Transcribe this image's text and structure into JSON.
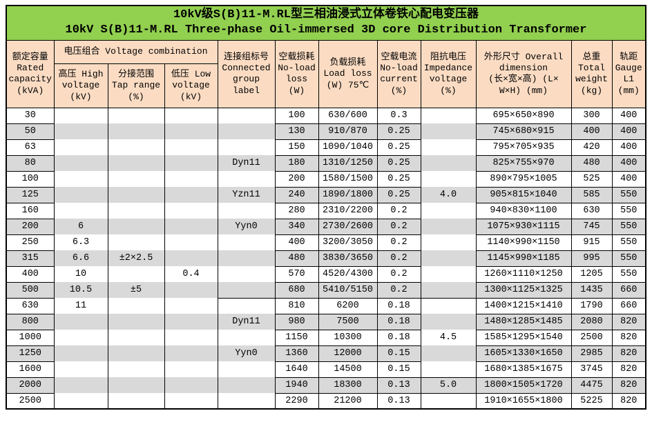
{
  "title": {
    "line1": "10kV级S(B)11-M.RL型三相油浸式立体卷铁心配电变压器",
    "line2": "10kV S(B)11-M.RL Three-phase Oil-immersed 3D core Distribution Transformer"
  },
  "colors": {
    "title_bg": "#92D050",
    "header_bg": "#FBDCC3",
    "stripe_bg": "#D9D9D9",
    "border": "#000000"
  },
  "header": {
    "capacity": "额定容量\nRated\ncapacity\n(kVA)",
    "voltage_combination": "电压组合 Voltage combination",
    "high_voltage": "高压 High\nvoltage\n(kV)",
    "tap_range": "分接范围\nTap range\n(%)",
    "low_voltage": "低压 Low\nvoltage\n(kV)",
    "connected_group": "连接组标号\nConnected\ngroup\nlabel",
    "no_load_loss": "空载损耗\nNo-load\nloss\n(W)",
    "load_loss": "负载损耗\nLoad loss\n(W) 75℃",
    "no_load_current": "空载电流\nNo-load\ncurrent\n(%)",
    "impedance_voltage": "阻抗电压\nImpedance\nvoltage\n(%)",
    "dimension": "外形尺寸 Overall\ndimension\n(长×宽×高) (L×\nW×H) (mm)",
    "total_weight": "总重\nTotal\nweight\n(kg)",
    "gauge": "轨距\nGauge\nL1\n(mm)"
  },
  "rows": [
    {
      "capacity": "30",
      "hv": "",
      "tap": "",
      "lv": "",
      "group": "",
      "no_load_loss": "100",
      "load_loss": "630/600",
      "no_load_current": "0.3",
      "impedance": "",
      "dimension": "695×650×890",
      "weight": "300",
      "gauge": "400"
    },
    {
      "capacity": "50",
      "hv": "",
      "tap": "",
      "lv": "",
      "group": "",
      "no_load_loss": "130",
      "load_loss": "910/870",
      "no_load_current": "0.25",
      "impedance": "",
      "dimension": "745×680×915",
      "weight": "400",
      "gauge": "400"
    },
    {
      "capacity": "63",
      "hv": "",
      "tap": "",
      "lv": "",
      "group": "",
      "no_load_loss": "150",
      "load_loss": "1090/1040",
      "no_load_current": "0.25",
      "impedance": "",
      "dimension": "795×705×935",
      "weight": "420",
      "gauge": "400"
    },
    {
      "capacity": "80",
      "hv": "",
      "tap": "",
      "lv": "",
      "group": "Dyn11",
      "no_load_loss": "180",
      "load_loss": "1310/1250",
      "no_load_current": "0.25",
      "impedance": "",
      "dimension": "825×755×970",
      "weight": "480",
      "gauge": "400"
    },
    {
      "capacity": "100",
      "hv": "",
      "tap": "",
      "lv": "",
      "group": "",
      "no_load_loss": "200",
      "load_loss": "1580/1500",
      "no_load_current": "0.25",
      "impedance": "",
      "dimension": "890×795×1005",
      "weight": "525",
      "gauge": "400"
    },
    {
      "capacity": "125",
      "hv": "",
      "tap": "",
      "lv": "",
      "group": "Yzn11",
      "no_load_loss": "240",
      "load_loss": "1890/1800",
      "no_load_current": "0.25",
      "impedance": "4.0",
      "dimension": "905×815×1040",
      "weight": "585",
      "gauge": "550"
    },
    {
      "capacity": "160",
      "hv": "",
      "tap": "",
      "lv": "",
      "group": "",
      "no_load_loss": "280",
      "load_loss": "2310/2200",
      "no_load_current": "0.2",
      "impedance": "",
      "dimension": "940×830×1100",
      "weight": "630",
      "gauge": "550"
    },
    {
      "capacity": "200",
      "hv": "6",
      "tap": "",
      "lv": "",
      "group": "Yyn0",
      "no_load_loss": "340",
      "load_loss": "2730/2600",
      "no_load_current": "0.2",
      "impedance": "",
      "dimension": "1075×930×1115",
      "weight": "745",
      "gauge": "550"
    },
    {
      "capacity": "250",
      "hv": "6.3",
      "tap": "",
      "lv": "",
      "group": "",
      "no_load_loss": "400",
      "load_loss": "3200/3050",
      "no_load_current": "0.2",
      "impedance": "",
      "dimension": "1140×990×1150",
      "weight": "915",
      "gauge": "550"
    },
    {
      "capacity": "315",
      "hv": "6.6",
      "tap": "±2×2.5",
      "lv": "",
      "group": "",
      "no_load_loss": "480",
      "load_loss": "3830/3650",
      "no_load_current": "0.2",
      "impedance": "",
      "dimension": "1145×990×1185",
      "weight": "995",
      "gauge": "550"
    },
    {
      "capacity": "400",
      "hv": "10",
      "tap": "",
      "lv": "0.4",
      "group": "",
      "no_load_loss": "570",
      "load_loss": "4520/4300",
      "no_load_current": "0.2",
      "impedance": "",
      "dimension": "1260×1110×1250",
      "weight": "1205",
      "gauge": "550"
    },
    {
      "capacity": "500",
      "hv": "10.5",
      "tap": "±5",
      "lv": "",
      "group": "",
      "no_load_loss": "680",
      "load_loss": "5410/5150",
      "no_load_current": "0.2",
      "impedance": "",
      "dimension": "1300×1125×1325",
      "weight": "1435",
      "gauge": "660"
    },
    {
      "capacity": "630",
      "hv": "11",
      "tap": "",
      "lv": "",
      "group": "",
      "no_load_loss": "810",
      "load_loss": "6200",
      "no_load_current": "0.18",
      "impedance": "",
      "dimension": "1400×1215×1410",
      "weight": "1790",
      "gauge": "660"
    },
    {
      "capacity": "800",
      "hv": "",
      "tap": "",
      "lv": "",
      "group": "Dyn11",
      "no_load_loss": "980",
      "load_loss": "7500",
      "no_load_current": "0.18",
      "impedance": "",
      "dimension": "1480×1285×1485",
      "weight": "2080",
      "gauge": "820"
    },
    {
      "capacity": "1000",
      "hv": "",
      "tap": "",
      "lv": "",
      "group": "",
      "no_load_loss": "1150",
      "load_loss": "10300",
      "no_load_current": "0.18",
      "impedance": "4.5",
      "dimension": "1585×1295×1540",
      "weight": "2500",
      "gauge": "820"
    },
    {
      "capacity": "1250",
      "hv": "",
      "tap": "",
      "lv": "",
      "group": "Yyn0",
      "no_load_loss": "1360",
      "load_loss": "12000",
      "no_load_current": "0.15",
      "impedance": "",
      "dimension": "1605×1330×1650",
      "weight": "2985",
      "gauge": "820"
    },
    {
      "capacity": "1600",
      "hv": "",
      "tap": "",
      "lv": "",
      "group": "",
      "no_load_loss": "1640",
      "load_loss": "14500",
      "no_load_current": "0.15",
      "impedance": "",
      "dimension": "1680×1385×1675",
      "weight": "3745",
      "gauge": "820"
    },
    {
      "capacity": "2000",
      "hv": "",
      "tap": "",
      "lv": "",
      "group": "",
      "no_load_loss": "1940",
      "load_loss": "18300",
      "no_load_current": "0.13",
      "impedance": "5.0",
      "dimension": "1800×1505×1720",
      "weight": "4475",
      "gauge": "820"
    },
    {
      "capacity": "2500",
      "hv": "",
      "tap": "",
      "lv": "",
      "group": "",
      "no_load_loss": "2290",
      "load_loss": "21200",
      "no_load_current": "0.13",
      "impedance": "",
      "dimension": "1910×1655×1800",
      "weight": "5225",
      "gauge": "820"
    }
  ]
}
